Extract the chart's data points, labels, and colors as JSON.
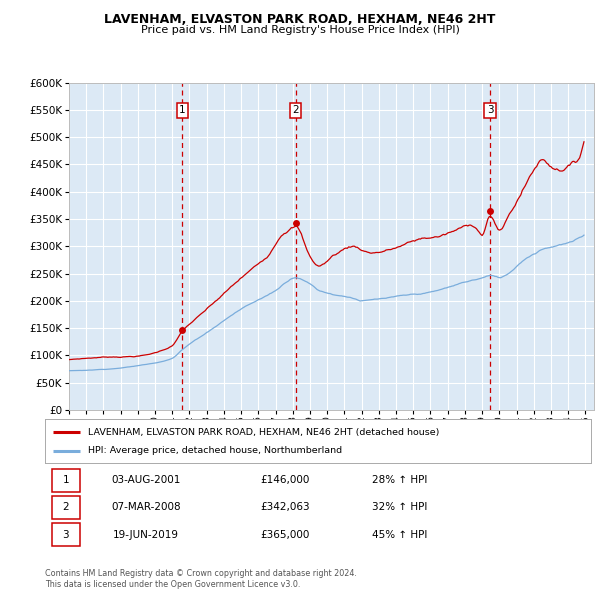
{
  "title": "LAVENHAM, ELVASTON PARK ROAD, HEXHAM, NE46 2HT",
  "subtitle": "Price paid vs. HM Land Registry's House Price Index (HPI)",
  "legend_line1": "LAVENHAM, ELVASTON PARK ROAD, HEXHAM, NE46 2HT (detached house)",
  "legend_line2": "HPI: Average price, detached house, Northumberland",
  "sale_color": "#cc0000",
  "hpi_color": "#7aaddc",
  "background_color": "#dce9f5",
  "plot_bg": "#ffffff",
  "grid_color": "#ffffff",
  "vline_color": "#cc0000",
  "ylim": [
    0,
    600000
  ],
  "yticks": [
    0,
    50000,
    100000,
    150000,
    200000,
    250000,
    300000,
    350000,
    400000,
    450000,
    500000,
    550000,
    600000
  ],
  "sales": [
    {
      "date_num": 2001.58,
      "price": 146000,
      "label": "1"
    },
    {
      "date_num": 2008.17,
      "price": 342063,
      "label": "2"
    },
    {
      "date_num": 2019.46,
      "price": 365000,
      "label": "3"
    }
  ],
  "vline_dates": [
    2001.58,
    2008.17,
    2019.46
  ],
  "footnote": "Contains HM Land Registry data © Crown copyright and database right 2024.\nThis data is licensed under the Open Government Licence v3.0.",
  "table_rows": [
    {
      "num": "1",
      "date": "03-AUG-2001",
      "price": "£146,000",
      "hpi": "28% ↑ HPI"
    },
    {
      "num": "2",
      "date": "07-MAR-2008",
      "price": "£342,063",
      "hpi": "32% ↑ HPI"
    },
    {
      "num": "3",
      "date": "19-JUN-2019",
      "price": "£365,000",
      "hpi": "45% ↑ HPI"
    }
  ]
}
